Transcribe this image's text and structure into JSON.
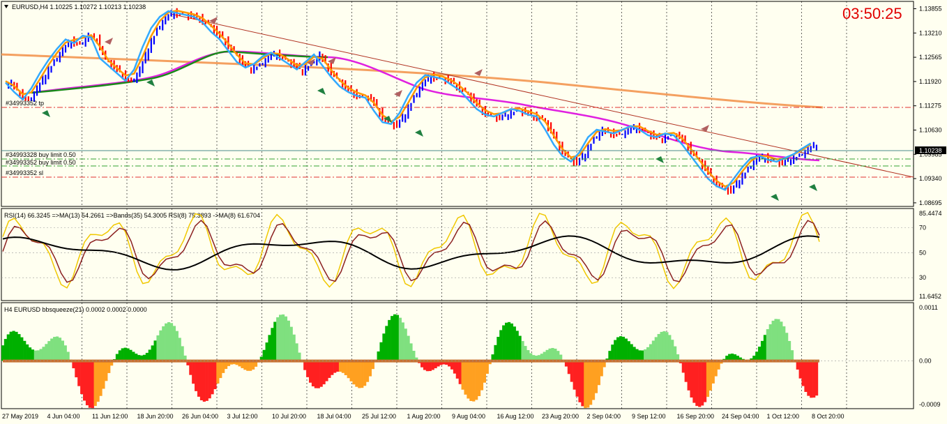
{
  "main_panel": {
    "title": "EURUSD,H4  1.10225 1.10272 1.10213 1.10238",
    "clock": "03:50:25",
    "current_price": "1.10238",
    "orders": [
      "#34993328 buy limit 0.50",
      "#34993352 buy limit 0.50",
      "#34993352 sl",
      "#34993352 tp"
    ],
    "price_ticks": [
      "1.13855",
      "1.13210",
      "1.12565",
      "1.11920",
      "1.11275",
      "1.10630",
      "1.09985",
      "1.09340",
      "1.08695"
    ],
    "colors": {
      "bull": "#0000ff",
      "bear": "#ff0000",
      "ma_magenta": "#e020e0",
      "ma_orange": "#f4a060",
      "ma_green": "#1a8a1a",
      "trend": "#b03020"
    }
  },
  "rsi_panel": {
    "title": "RSI(14) 66.3245  =>MA(13) 54.2661  =>Bands(35) 54.3005  RSI(8) 75.3893  ->MA(8) 61.6704",
    "ticks": [
      "85.4474",
      "70",
      "50",
      "30",
      "11.6452"
    ]
  },
  "bb_panel": {
    "title": "H4 EURUSD bbsqueeze(21) 0.0002 0.0002 0.0000",
    "ticks": [
      "0.0011",
      "0.00",
      "0.0000",
      "-0.0009"
    ]
  },
  "time_axis": [
    "27 May 2019",
    "4 Jun 04:00",
    "11 Jun 12:00",
    "18 Jun 20:00",
    "26 Jun 04:00",
    "3 Jul 12:00",
    "10 Jul 20:00",
    "18 Jul 04:00",
    "25 Jul 12:00",
    "1 Aug 20:00",
    "9 Aug 04:00",
    "16 Aug 12:00",
    "23 Aug 20:00",
    "2 Sep 04:00",
    "9 Sep 12:00",
    "16 Sep 20:00",
    "24 Sep 04:00",
    "1 Oct 12:00",
    "8 Oct 20:00"
  ],
  "chart_data": {
    "type": "line",
    "price_close_series": [
      1.1185,
      1.116,
      1.114,
      1.117,
      1.121,
      1.1245,
      1.1275,
      1.13,
      1.129,
      1.131,
      1.1305,
      1.125,
      1.123,
      1.121,
      1.119,
      1.122,
      1.128,
      1.133,
      1.136,
      1.1375,
      1.137,
      1.1365,
      1.136,
      1.1345,
      1.132,
      1.13,
      1.127,
      1.124,
      1.1225,
      1.1235,
      1.1255,
      1.1265,
      1.125,
      1.1235,
      1.122,
      1.124,
      1.126,
      1.123,
      1.12,
      1.1175,
      1.116,
      1.115,
      1.1145,
      1.111,
      1.108,
      1.1075,
      1.1105,
      1.115,
      1.1185,
      1.1205,
      1.12,
      1.1195,
      1.118,
      1.1165,
      1.114,
      1.1115,
      1.11,
      1.1095,
      1.1105,
      1.1115,
      1.111,
      1.11,
      1.1095,
      1.106,
      1.102,
      1.099,
      1.0975,
      1.1,
      1.104,
      1.106,
      1.1055,
      1.105,
      1.106,
      1.107,
      1.106,
      1.1045,
      1.104,
      1.105,
      1.1045,
      1.102,
      1.099,
      1.096,
      1.093,
      1.091,
      1.09,
      1.093,
      1.096,
      1.0985,
      1.099,
      1.098,
      1.0975,
      1.0985,
      1.0995,
      1.101,
      1.1024
    ]
  }
}
